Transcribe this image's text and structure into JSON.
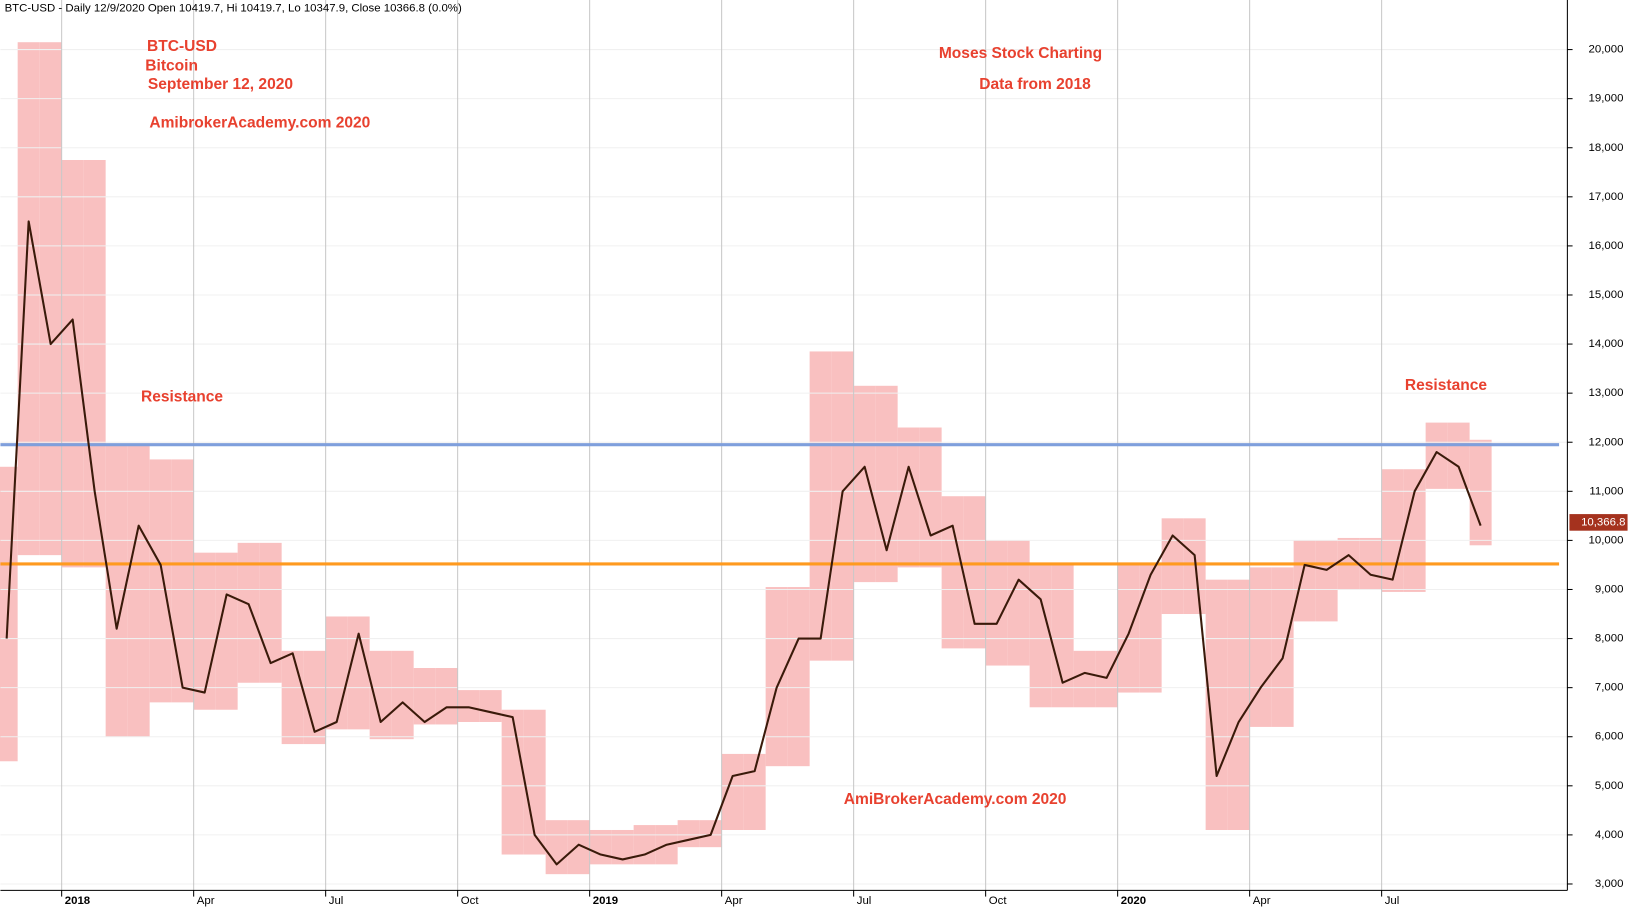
{
  "chart_data": {
    "type": "line",
    "header": "BTC-USD - Daily 12/9/2020 Open 10419.7, Hi 10419.7, Lo 10347.9, Close 10366.8 (0.0%)",
    "annotations": [
      "BTC-USD",
      "Bitcoin",
      "September 12, 2020",
      "AmibrokerAcademy.com  2020",
      "Moses Stock Charting",
      "Data from 2018",
      "Resistance",
      "Resistance",
      "AmiBrokerAcademy.com  2020"
    ],
    "categories": [
      null,
      null,
      null,
      "2018",
      null,
      null,
      null,
      null,
      null,
      "Apr",
      null,
      null,
      null,
      null,
      null,
      "Jul",
      null,
      null,
      null,
      null,
      null,
      "Oct",
      null,
      null,
      null,
      null,
      null,
      "2019",
      null,
      null,
      null,
      null,
      null,
      "Apr",
      null,
      null,
      null,
      null,
      null,
      "Jul",
      null,
      null,
      null,
      null,
      null,
      "Oct",
      null,
      null,
      null,
      null,
      null,
      "2020",
      null,
      null,
      null,
      null,
      null,
      "Apr",
      null,
      null,
      null,
      null,
      null,
      "Jul",
      null,
      null,
      null,
      null
    ],
    "series": [
      {
        "color": "#3a1a0a",
        "values": [
          8000,
          16500,
          14000,
          14500,
          11000,
          8200,
          10300,
          9500,
          7000,
          6900,
          8900,
          8700,
          7500,
          7700,
          6100,
          6300,
          8100,
          6300,
          6700,
          6300,
          6600,
          6600,
          6500,
          6400,
          4000,
          3400,
          3800,
          3600,
          3500,
          3600,
          3800,
          3900,
          4000,
          5200,
          5300,
          7000,
          8000,
          8000,
          11000,
          11500,
          9800,
          11500,
          10100,
          10300,
          8300,
          8300,
          9200,
          8800,
          7100,
          7300,
          7200,
          8100,
          9300,
          10100,
          9700,
          5200,
          6300,
          7000,
          7600,
          9500,
          9400,
          9700,
          9300,
          9200,
          11000,
          11800,
          11500,
          10300
        ]
      }
    ],
    "range_low": [
      5500,
      9700,
      9700,
      9450,
      9450,
      6000,
      6000,
      6700,
      6700,
      6550,
      6550,
      7100,
      7100,
      5850,
      5850,
      6150,
      6150,
      5950,
      5950,
      6250,
      6250,
      6300,
      6300,
      3600,
      3600,
      3200,
      3200,
      3400,
      3400,
      3400,
      3400,
      3750,
      3750,
      4100,
      4100,
      5400,
      5400,
      7550,
      7550,
      9150,
      9150,
      9450,
      9450,
      7800,
      7800,
      7450,
      7450,
      6600,
      6600,
      6600,
      6600,
      6900,
      6900,
      8500,
      8500,
      4100,
      4100,
      6200,
      6200,
      8350,
      8350,
      9000,
      9000,
      8950,
      8950,
      11050,
      11050,
      9900
    ],
    "range_high": [
      11500,
      20150,
      20150,
      17750,
      17750,
      11950,
      11950,
      11650,
      11650,
      9750,
      9750,
      9950,
      9950,
      7750,
      7750,
      8450,
      8450,
      7750,
      7750,
      7400,
      7400,
      6950,
      6950,
      6550,
      6550,
      4300,
      4300,
      4100,
      4100,
      4200,
      4200,
      4300,
      4300,
      5650,
      5650,
      9050,
      9050,
      13850,
      13850,
      13150,
      13150,
      12300,
      12300,
      10900,
      10900,
      10000,
      10000,
      9550,
      9550,
      7750,
      7750,
      9550,
      9550,
      10450,
      10450,
      9200,
      9200,
      9450,
      9450,
      10000,
      10000,
      10050,
      10050,
      11450,
      11450,
      12400,
      12400,
      12050
    ],
    "range_color": "#f9c0c0",
    "levels": [
      {
        "value": 11950,
        "color": "#7f9fdc"
      },
      {
        "value": 9520,
        "color": "#ff9a1f"
      }
    ],
    "last_price": 10366.8,
    "last_price_label": "10,366.8",
    "ylim": [
      2870,
      21010
    ],
    "yticks": [
      {
        "value": 3000,
        "label": "3,000"
      },
      {
        "value": 4000,
        "label": "4,000"
      },
      {
        "value": 5000,
        "label": "5,000"
      },
      {
        "value": 6000,
        "label": "6,000"
      },
      {
        "value": 7000,
        "label": "7,000"
      },
      {
        "value": 8000,
        "label": "8,000"
      },
      {
        "value": 9000,
        "label": "9,000"
      },
      {
        "value": 10000,
        "label": "10,000"
      },
      {
        "value": 11000,
        "label": "11,000"
      },
      {
        "value": 12000,
        "label": "12,000"
      },
      {
        "value": 13000,
        "label": "13,000"
      },
      {
        "value": 14000,
        "label": "14,000"
      },
      {
        "value": 15000,
        "label": "15,000"
      },
      {
        "value": 16000,
        "label": "16,000"
      },
      {
        "value": 17000,
        "label": "17,000"
      },
      {
        "value": 18000,
        "label": "18,000"
      },
      {
        "value": 19000,
        "label": "19,000"
      },
      {
        "value": 20000,
        "label": "20,000"
      }
    ],
    "grid": true
  }
}
